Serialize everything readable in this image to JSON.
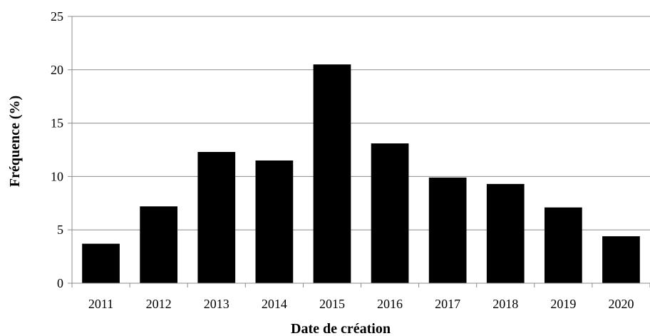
{
  "chart_data": {
    "type": "bar",
    "categories": [
      "2011",
      "2012",
      "2013",
      "2014",
      "2015",
      "2016",
      "2017",
      "2018",
      "2019",
      "2020"
    ],
    "values": [
      3.7,
      7.2,
      12.3,
      11.5,
      20.5,
      13.1,
      9.9,
      9.3,
      7.1,
      4.4
    ],
    "xlabel": "Date de création",
    "ylabel": "Fréquence (%)",
    "ylim": [
      0,
      25
    ],
    "yticks": [
      "0",
      "5",
      "10",
      "15",
      "20",
      "25"
    ],
    "grid": true,
    "colors": {
      "bar": "#000000",
      "grid": "#8c8c8c",
      "axis": "#8c8c8c"
    }
  }
}
